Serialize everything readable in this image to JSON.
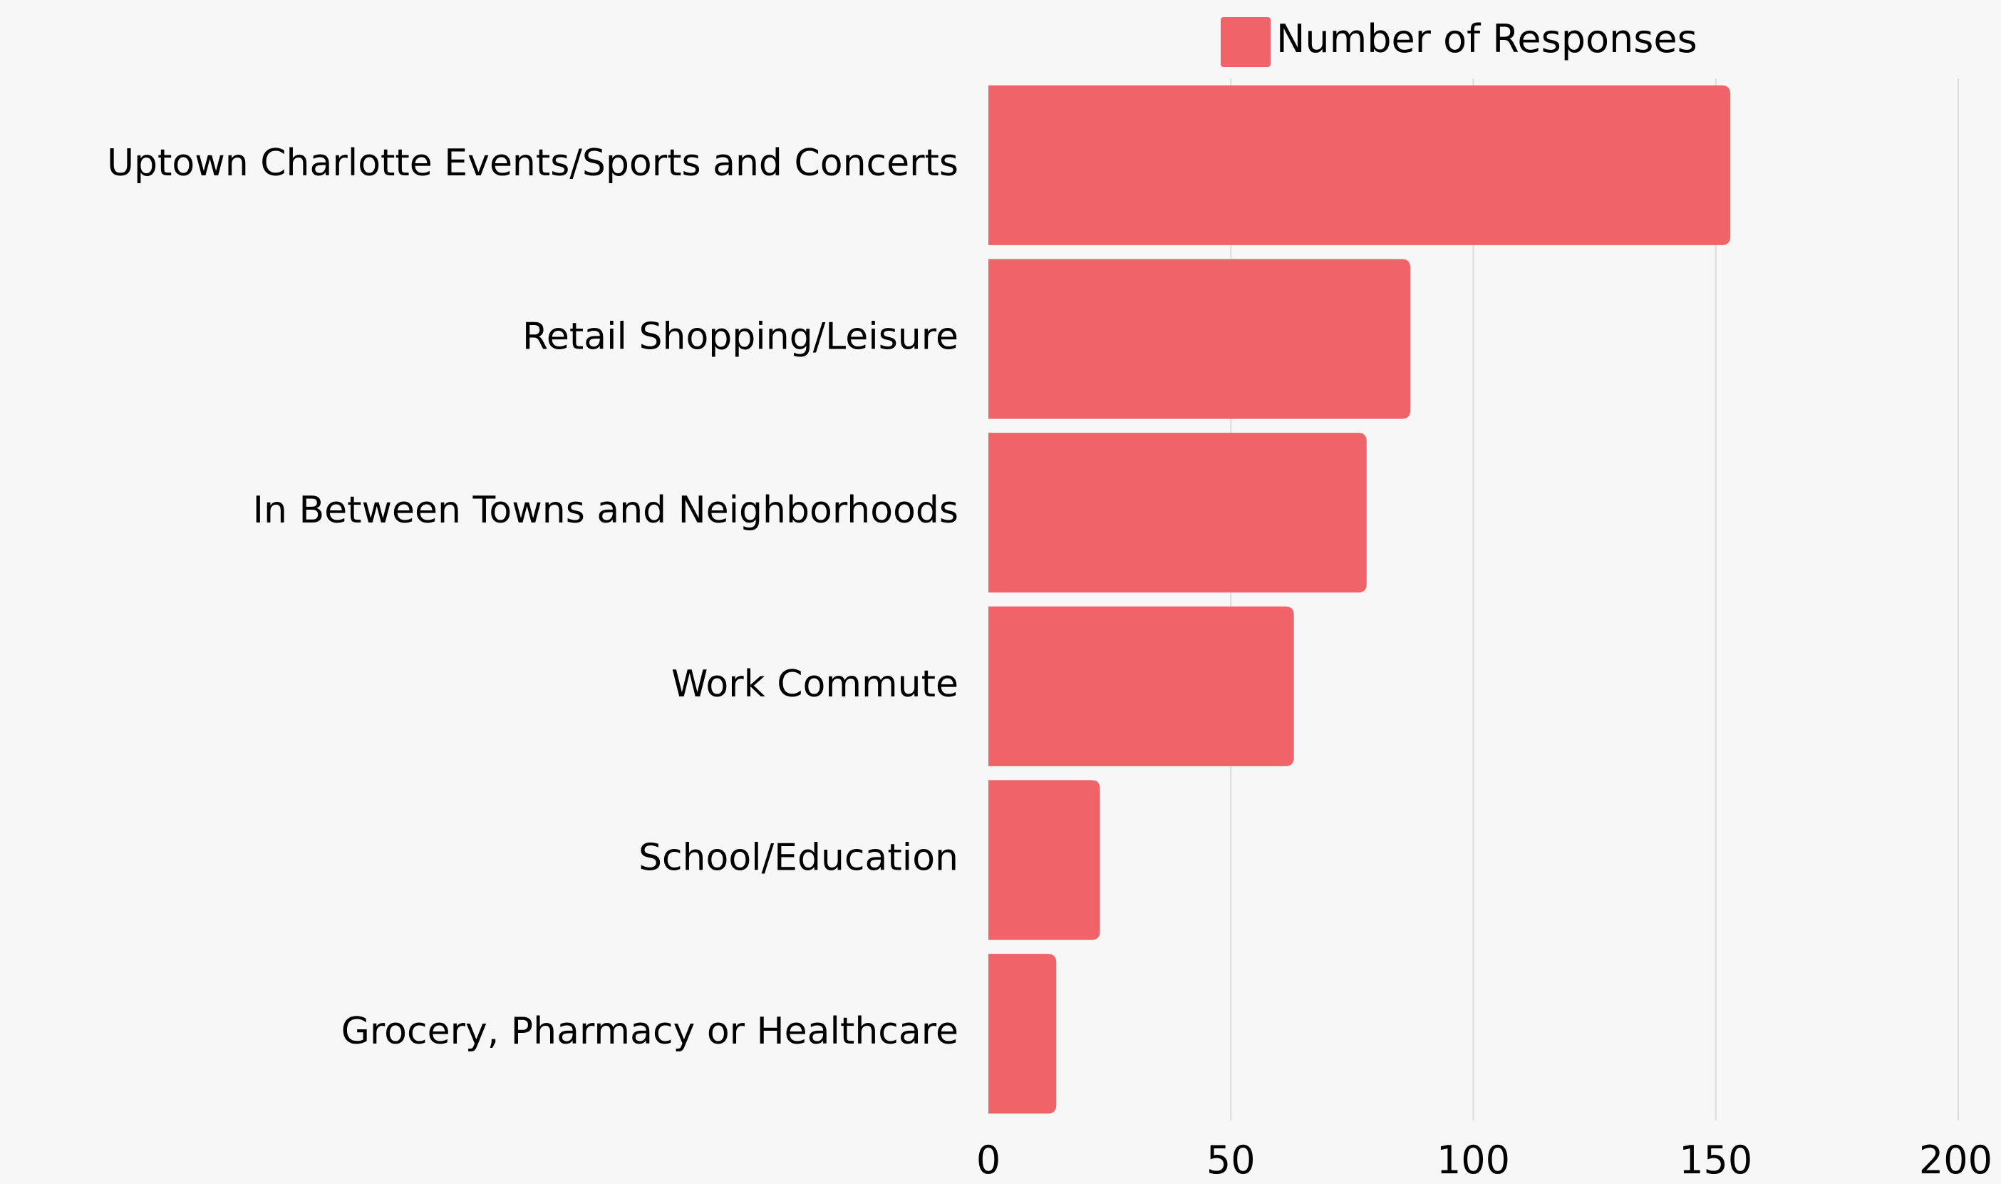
{
  "chart_data": {
    "type": "bar",
    "orientation": "horizontal",
    "categories": [
      "Uptown Charlotte Events/Sports and Concerts",
      "Retail Shopping/Leisure",
      "In Between Towns and Neighborhoods",
      "Work Commute",
      "School/Education",
      "Grocery, Pharmacy or Healthcare"
    ],
    "series": [
      {
        "name": "Number of Responses",
        "values": [
          153,
          87,
          78,
          63,
          23,
          14
        ],
        "color": "#f06368"
      }
    ],
    "xlim": [
      0,
      200
    ],
    "xticks": [
      0,
      50,
      100,
      150,
      200
    ],
    "title": "",
    "xlabel": "",
    "ylabel": "",
    "grid": "vertical",
    "legend": "top-center"
  }
}
